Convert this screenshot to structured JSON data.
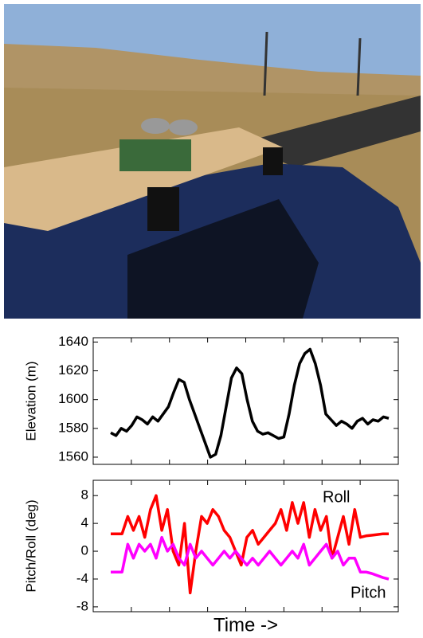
{
  "chart_data": [
    {
      "type": "line",
      "ylabel": "Elevation (m)",
      "ylim": [
        1555,
        1643
      ],
      "yticks": [
        1560,
        1580,
        1600,
        1620,
        1640
      ],
      "series": [
        {
          "name": "Elevation",
          "color": "#000000",
          "values": [
            1577,
            1575,
            1580,
            1578,
            1582,
            1588,
            1586,
            1583,
            1588,
            1585,
            1590,
            1595,
            1605,
            1614,
            1612,
            1600,
            1590,
            1580,
            1570,
            1560,
            1562,
            1575,
            1595,
            1615,
            1622,
            1618,
            1600,
            1585,
            1578,
            1576,
            1577,
            1575,
            1573,
            1574,
            1590,
            1610,
            1625,
            1632,
            1635,
            1625,
            1610,
            1590,
            1586,
            1582,
            1585,
            1583,
            1580,
            1585,
            1587,
            1583,
            1586,
            1585,
            1588,
            1587
          ]
        }
      ]
    },
    {
      "type": "line",
      "ylabel": "Pitch/Roll (deg)",
      "xlabel": "Time ->",
      "ylim": [
        -8.7,
        10.2
      ],
      "yticks": [
        -8,
        -4,
        0,
        4,
        8
      ],
      "series": [
        {
          "name": "Roll",
          "color": "#ff0000",
          "values": [
            2.5,
            2.5,
            2.5,
            5,
            3,
            5,
            2,
            6,
            8,
            3,
            6,
            0,
            -2,
            4,
            -6,
            0,
            5,
            4,
            6,
            5,
            3,
            2,
            0,
            -2,
            2,
            3,
            1,
            2,
            3,
            4,
            6,
            3,
            7,
            4,
            7,
            2,
            6,
            3,
            5,
            -1,
            2,
            5,
            1,
            6,
            2,
            2.2,
            2.3,
            2.4,
            2.5,
            2.5
          ]
        },
        {
          "name": "Pitch",
          "color": "#ff00ff",
          "values": [
            -3,
            -3,
            -3,
            1,
            -1,
            1,
            0,
            1,
            -1,
            2,
            0,
            1,
            -1,
            -2,
            1,
            -1,
            0,
            -1,
            -2,
            -1,
            0,
            -1,
            0,
            -1,
            -2,
            -1,
            -2,
            -1,
            0,
            -1,
            -2,
            -1,
            0,
            -1,
            1,
            -2,
            -1,
            0,
            1,
            -1,
            0,
            -2,
            -1,
            -1,
            -3,
            -3,
            -3.2,
            -3.5,
            -3.8,
            -4
          ]
        }
      ]
    }
  ]
}
